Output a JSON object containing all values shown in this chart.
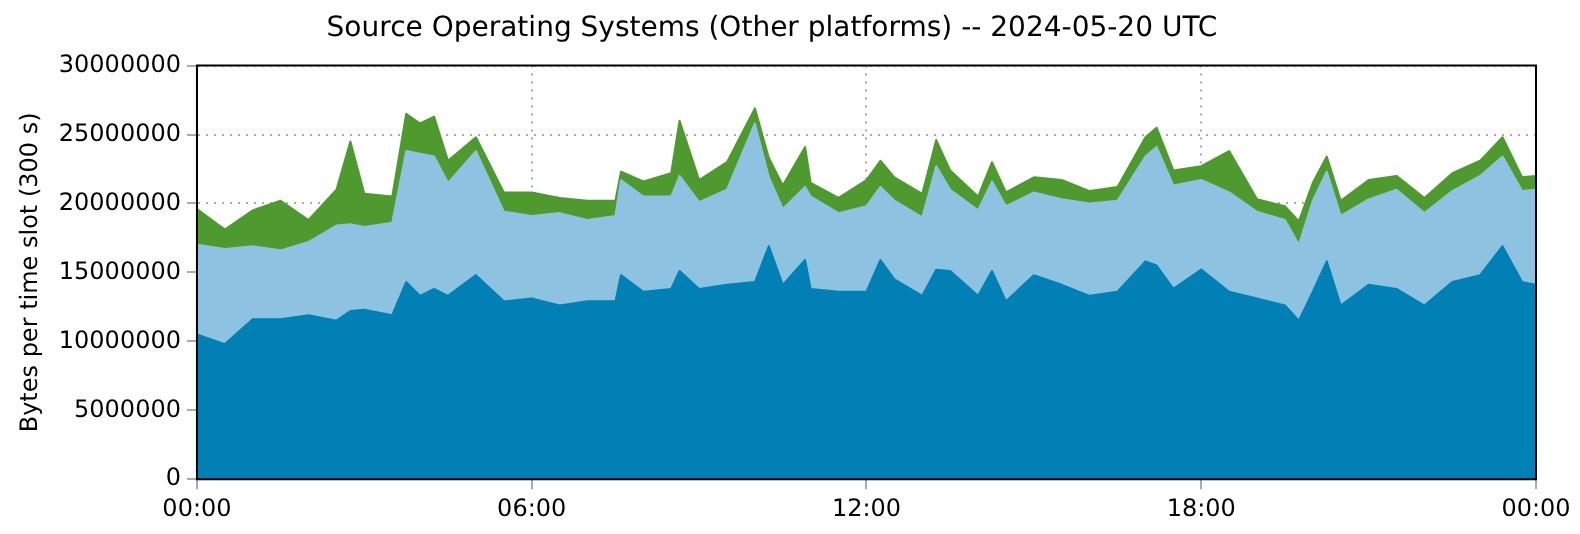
{
  "chart_data": {
    "type": "area",
    "title": "Source Operating Systems (Other platforms) -- 2024-05-20 UTC",
    "ylabel": "Bytes per time slot (300 s)",
    "stacked": true,
    "grid": true,
    "x": [
      0,
      0.5,
      1,
      1.5,
      2,
      2.5,
      2.75,
      3,
      3.5,
      3.75,
      4,
      4.25,
      4.5,
      5,
      5.5,
      6,
      6.5,
      7,
      7.5,
      7.6,
      8,
      8.5,
      8.65,
      9,
      9.5,
      10,
      10.25,
      10.5,
      10.9,
      11,
      11.5,
      12,
      12.25,
      12.5,
      13,
      13.25,
      13.5,
      14,
      14.25,
      14.5,
      15,
      15.5,
      16,
      16.5,
      17,
      17.2,
      17.5,
      18,
      18.5,
      19,
      19.5,
      19.75,
      20,
      20.25,
      20.5,
      21,
      21.5,
      22,
      22.5,
      23,
      23.4,
      23.75,
      24
    ],
    "series": [
      {
        "color": "#0080b4",
        "values": [
          10500000,
          9800000,
          11600000,
          11600000,
          11900000,
          11500000,
          12200000,
          12300000,
          11900000,
          14300000,
          13300000,
          13800000,
          13300000,
          14800000,
          12900000,
          13100000,
          12600000,
          12900000,
          12900000,
          14800000,
          13600000,
          13800000,
          15100000,
          13800000,
          14100000,
          14300000,
          16900000,
          14100000,
          15900000,
          13800000,
          13600000,
          13600000,
          15900000,
          14500000,
          13300000,
          15200000,
          15100000,
          13300000,
          15100000,
          12900000,
          14800000,
          14100000,
          13300000,
          13600000,
          15800000,
          15500000,
          13800000,
          15200000,
          13600000,
          13100000,
          12600000,
          11500000,
          13600000,
          15800000,
          12600000,
          14100000,
          13800000,
          12600000,
          14300000,
          14800000,
          16900000,
          14300000,
          14100000
        ]
      },
      {
        "color": "#8dc3e1",
        "values": [
          6500000,
          6900000,
          5300000,
          5000000,
          5300000,
          6900000,
          6300000,
          6000000,
          6700000,
          9500000,
          10300000,
          9600000,
          8200000,
          9000000,
          6500000,
          6000000,
          6700000,
          5900000,
          6200000,
          6900000,
          6900000,
          6700000,
          6900000,
          6300000,
          6900000,
          11500000,
          5000000,
          5500000,
          5300000,
          6700000,
          5700000,
          6200000,
          5300000,
          5700000,
          5700000,
          7500000,
          5900000,
          6200000,
          6500000,
          6900000,
          6000000,
          6200000,
          6700000,
          6600000,
          7600000,
          8600000,
          7500000,
          6500000,
          7200000,
          6300000,
          6200000,
          5500000,
          6600000,
          6500000,
          6500000,
          6200000,
          7200000,
          6700000,
          6600000,
          7200000,
          6500000,
          6600000,
          6900000
        ]
      },
      {
        "color": "#4e9a2e",
        "values": [
          2600000,
          1400000,
          2600000,
          3600000,
          1600000,
          2600000,
          6000000,
          2400000,
          1900000,
          2700000,
          2200000,
          2900000,
          1600000,
          1000000,
          1400000,
          1700000,
          1100000,
          1400000,
          1100000,
          600000,
          1100000,
          1700000,
          4000000,
          1600000,
          2000000,
          1100000,
          1400000,
          1700000,
          2900000,
          1000000,
          1100000,
          1900000,
          1900000,
          1700000,
          1700000,
          1900000,
          1400000,
          1000000,
          1400000,
          1000000,
          1100000,
          1400000,
          900000,
          1000000,
          1400000,
          1400000,
          1100000,
          1000000,
          3000000,
          900000,
          1000000,
          1700000,
          1300000,
          1100000,
          1100000,
          1400000,
          1000000,
          1100000,
          1300000,
          1100000,
          1400000,
          1000000,
          1000000
        ]
      }
    ],
    "xlim": [
      0,
      24
    ],
    "xticks": [
      {
        "value": 0,
        "label": "00:00"
      },
      {
        "value": 6,
        "label": "06:00"
      },
      {
        "value": 12,
        "label": "12:00"
      },
      {
        "value": 18,
        "label": "18:00"
      },
      {
        "value": 24,
        "label": "00:00"
      }
    ],
    "ylim": [
      0,
      30000000
    ],
    "yticks": [
      0,
      5000000,
      10000000,
      15000000,
      20000000,
      25000000,
      30000000
    ]
  }
}
